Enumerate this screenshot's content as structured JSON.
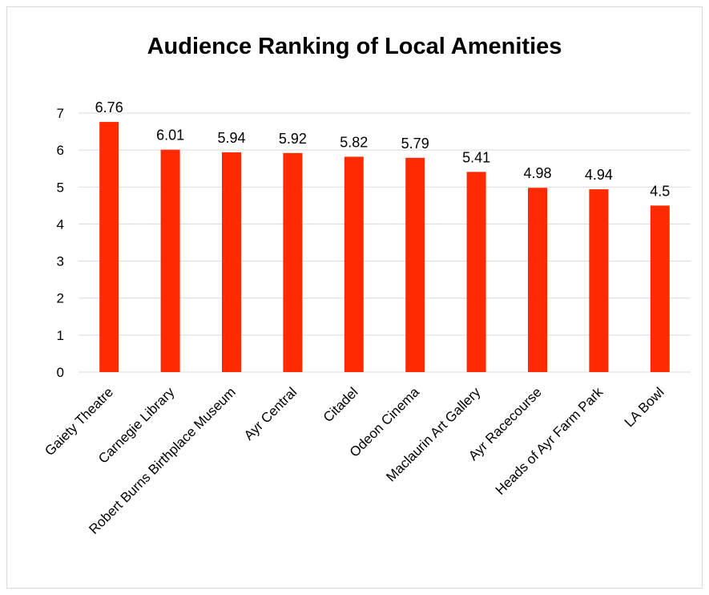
{
  "chart_data": {
    "type": "bar",
    "title": "Audience Ranking of Local Amenities",
    "xlabel": "",
    "ylabel": "",
    "categories": [
      "Gaiety Theatre",
      "Carnegie Library",
      "Robert Burns Birthplace Museum",
      "Ayr Central",
      "Citadel",
      "Odeon Cinema",
      "Maclaurin Art Gallery",
      "Ayr Racecourse",
      "Heads of Ayr Farm Park",
      "LA Bowl"
    ],
    "values": [
      6.76,
      6.01,
      5.94,
      5.92,
      5.82,
      5.79,
      5.41,
      4.98,
      4.94,
      4.5
    ],
    "data_labels": [
      "6.76",
      "6.01",
      "5.94",
      "5.92",
      "5.82",
      "5.79",
      "5.41",
      "4.98",
      "4.94",
      "4.5"
    ],
    "ylim": [
      0,
      7
    ],
    "yticks": [
      "0",
      "1",
      "2",
      "3",
      "4",
      "5",
      "6",
      "7"
    ],
    "grid": true,
    "legend": "none",
    "bar_color": "#ff2a00",
    "grid_color": "#d9d9d9"
  }
}
